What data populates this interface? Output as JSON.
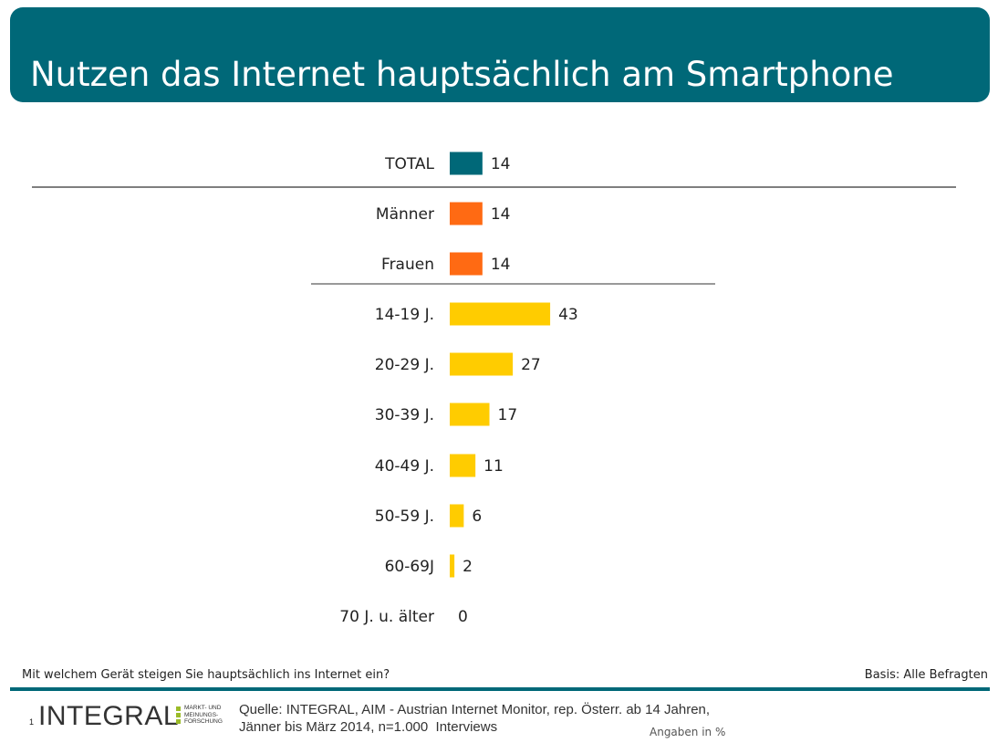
{
  "header": {
    "title": "Nutzen das Internet hauptsächlich am Smartphone"
  },
  "chart_data": {
    "type": "bar",
    "orientation": "horizontal",
    "title": "Nutzen das Internet hauptsächlich am Smartphone",
    "xlabel": "",
    "ylabel": "",
    "xlim": [
      0,
      100
    ],
    "grid": false,
    "categories": [
      "TOTAL",
      "Männer",
      "Frauen",
      "14-19 J.",
      "20-29 J.",
      "30-39 J.",
      "40-49 J.",
      "50-59 J.",
      "60-69J",
      "70 J. u. älter"
    ],
    "values": [
      14,
      14,
      14,
      43,
      27,
      17,
      11,
      6,
      2,
      0
    ],
    "bar_colors": [
      "#006878",
      "#ff6a13",
      "#ff6a13",
      "#ffcc00",
      "#ffcc00",
      "#ffcc00",
      "#ffcc00",
      "#ffcc00",
      "#ffcc00",
      "#ffcc00"
    ]
  },
  "footer": {
    "question": "Mit welchem Gerät steigen Sie hauptsächlich ins Internet ein?",
    "basis": "Basis: Alle Befragten",
    "page_number": "1",
    "logo_word": "INTEGRAL",
    "logo_tagline": [
      "MARKT- UND",
      "MEINUNGS-",
      "FORSCHUNG"
    ],
    "source": "Quelle: INTEGRAL, AIM - Austrian Internet Monitor, rep. Österr. ab 14 Jahren,\nJänner bis März 2014, n=1.000  Interviews",
    "units": "Angaben in %"
  },
  "colors": {
    "accent": "#006878",
    "gender": "#ff6a13",
    "age": "#ffcc00"
  }
}
